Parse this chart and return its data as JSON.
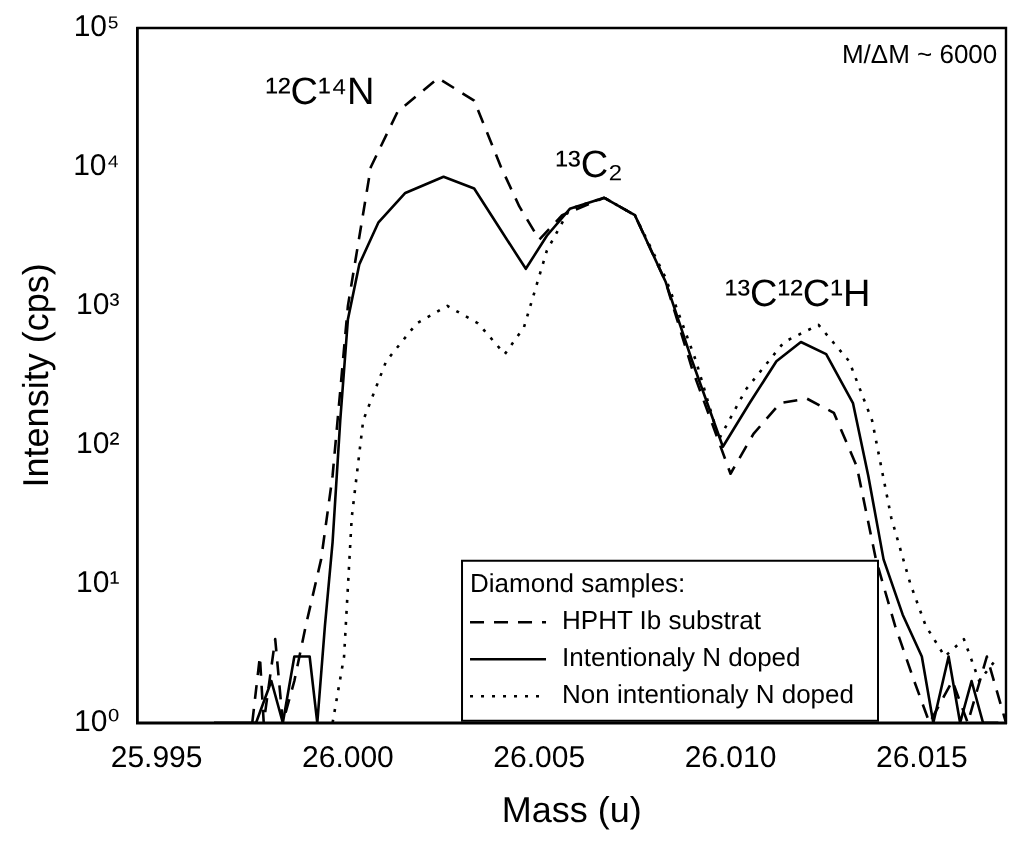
{
  "chart_data": {
    "type": "line",
    "xlabel": "Mass (u)",
    "ylabel": "Intensity (cps)",
    "legend_title": "Diamond samples:",
    "legend": "bottom right",
    "log": "y",
    "grid": false,
    "xlim": [
      25.9945,
      26.0172
    ],
    "xticks": [
      25.995,
      {
        "value": 26,
        "label": "26.000"
      },
      26.005,
      {
        "value": 26.01,
        "label": "26.010"
      },
      26.015
    ],
    "ylim": [
      1,
      100000
    ],
    "yticks": [
      {
        "value": 1,
        "label": "10⁰"
      },
      {
        "value": 10,
        "label": "10¹"
      },
      {
        "value": 100,
        "label": "10²"
      },
      {
        "value": 1000,
        "label": "10³"
      },
      {
        "value": 10000,
        "label": "10⁴"
      },
      {
        "value": 100000,
        "label": "10⁵"
      }
    ],
    "annotations": [
      "¹²C¹⁴N",
      "¹³C₂",
      "¹³C¹²C¹H",
      "M/ΔM ~ 6000"
    ],
    "series": [
      {
        "name": "HPHT Ib substrat",
        "color": "#000000",
        "line_style": "dashed",
        "x": [
          25.9975,
          25.9977,
          25.9978,
          25.9981,
          25.9983,
          25.9986,
          25.9989,
          25.9993,
          25.9996,
          26.0,
          26.0006,
          26.0013,
          26.00236,
          26.0033,
          26.004,
          26.00448,
          26.005,
          26.0056,
          26.0067,
          26.0075,
          26.0083,
          26.009,
          26.01,
          26.0106,
          26.0113,
          26.012,
          26.0127,
          26.0133,
          26.0138,
          26.0143,
          26.0148,
          26.0152,
          26.0158,
          26.0162,
          26.0167,
          26.0172
        ],
        "values": [
          1,
          3,
          1,
          4,
          1,
          2,
          5,
          15,
          60,
          1000,
          10000,
          25000,
          43600,
          30000,
          10000,
          5200,
          3000,
          4500,
          6000,
          4500,
          1500,
          350,
          62,
          120,
          200,
          215,
          170,
          70,
          15,
          5,
          2,
          1,
          2,
          1,
          3,
          1
        ]
      },
      {
        "name": "Intentionaly N doped",
        "color": "#000000",
        "line_style": "solid",
        "x": [
          25.9965,
          25.9976,
          25.998,
          25.9983,
          25.9986,
          25.999,
          25.9992,
          25.9994,
          25.9996,
          25.9998,
          26.0,
          26.0003,
          26.0008,
          26.0015,
          26.0025,
          26.0033,
          26.004,
          26.00465,
          26.0052,
          26.0058,
          26.0067,
          26.0075,
          26.0083,
          26.009,
          26.0098,
          26.0105,
          26.0112,
          26.01184,
          26.0125,
          26.0132,
          26.0136,
          26.014,
          26.0145,
          26.015,
          26.0153,
          26.0157,
          26.016,
          26.0163,
          26.0166,
          26.017
        ],
        "values": [
          1,
          1,
          2,
          1,
          3,
          3,
          1,
          5,
          20,
          150,
          800,
          2000,
          4000,
          6500,
          8500,
          7000,
          3500,
          1850,
          3200,
          5000,
          6000,
          4500,
          1500,
          400,
          97,
          200,
          400,
          550,
          450,
          200,
          60,
          15,
          6,
          3,
          1,
          3,
          1,
          2,
          1,
          1
        ]
      },
      {
        "name": "Non intentionaly N doped",
        "color": "#000000",
        "line_style": "dotted",
        "x": [
          25.9996,
          25.9999,
          26.0001,
          26.0004,
          26.001,
          26.0018,
          26.0026,
          26.0034,
          26.0041,
          26.0046,
          26.0052,
          26.0058,
          26.0067,
          26.0075,
          26.0083,
          26.0091,
          26.0097,
          26.0104,
          26.0114,
          26.0123,
          26.0131,
          26.0137,
          26.0142,
          26.0147,
          26.0151,
          26.0156,
          26.0161,
          26.0165,
          26.017
        ],
        "values": [
          1,
          3,
          30,
          150,
          400,
          750,
          1000,
          750,
          450,
          700,
          2500,
          5000,
          6000,
          4500,
          1600,
          400,
          110,
          250,
          550,
          730,
          400,
          150,
          30,
          10,
          5,
          3,
          4,
          2,
          3
        ]
      }
    ]
  }
}
